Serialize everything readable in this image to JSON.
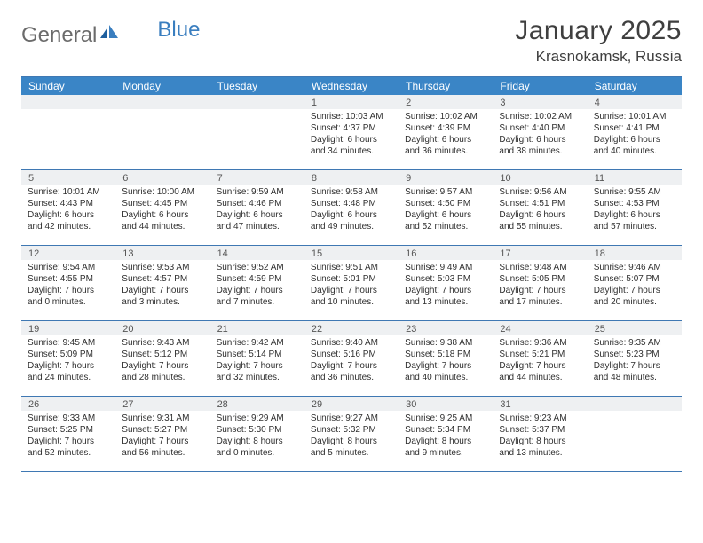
{
  "brand": {
    "part1": "General",
    "part2": "Blue"
  },
  "title": "January 2025",
  "location": "Krasnokamsk, Russia",
  "colors": {
    "header_bg": "#3a85c6",
    "border": "#3f78b3",
    "daybar": "#eef0f2",
    "logo_gray": "#6b6b6b",
    "logo_blue": "#3a7ebf"
  },
  "dayNames": [
    "Sunday",
    "Monday",
    "Tuesday",
    "Wednesday",
    "Thursday",
    "Friday",
    "Saturday"
  ],
  "weeks": [
    [
      {
        "n": "",
        "sr": "",
        "ss": "",
        "dl1": "",
        "dl2": ""
      },
      {
        "n": "",
        "sr": "",
        "ss": "",
        "dl1": "",
        "dl2": ""
      },
      {
        "n": "",
        "sr": "",
        "ss": "",
        "dl1": "",
        "dl2": ""
      },
      {
        "n": "1",
        "sr": "Sunrise: 10:03 AM",
        "ss": "Sunset: 4:37 PM",
        "dl1": "Daylight: 6 hours",
        "dl2": "and 34 minutes."
      },
      {
        "n": "2",
        "sr": "Sunrise: 10:02 AM",
        "ss": "Sunset: 4:39 PM",
        "dl1": "Daylight: 6 hours",
        "dl2": "and 36 minutes."
      },
      {
        "n": "3",
        "sr": "Sunrise: 10:02 AM",
        "ss": "Sunset: 4:40 PM",
        "dl1": "Daylight: 6 hours",
        "dl2": "and 38 minutes."
      },
      {
        "n": "4",
        "sr": "Sunrise: 10:01 AM",
        "ss": "Sunset: 4:41 PM",
        "dl1": "Daylight: 6 hours",
        "dl2": "and 40 minutes."
      }
    ],
    [
      {
        "n": "5",
        "sr": "Sunrise: 10:01 AM",
        "ss": "Sunset: 4:43 PM",
        "dl1": "Daylight: 6 hours",
        "dl2": "and 42 minutes."
      },
      {
        "n": "6",
        "sr": "Sunrise: 10:00 AM",
        "ss": "Sunset: 4:45 PM",
        "dl1": "Daylight: 6 hours",
        "dl2": "and 44 minutes."
      },
      {
        "n": "7",
        "sr": "Sunrise: 9:59 AM",
        "ss": "Sunset: 4:46 PM",
        "dl1": "Daylight: 6 hours",
        "dl2": "and 47 minutes."
      },
      {
        "n": "8",
        "sr": "Sunrise: 9:58 AM",
        "ss": "Sunset: 4:48 PM",
        "dl1": "Daylight: 6 hours",
        "dl2": "and 49 minutes."
      },
      {
        "n": "9",
        "sr": "Sunrise: 9:57 AM",
        "ss": "Sunset: 4:50 PM",
        "dl1": "Daylight: 6 hours",
        "dl2": "and 52 minutes."
      },
      {
        "n": "10",
        "sr": "Sunrise: 9:56 AM",
        "ss": "Sunset: 4:51 PM",
        "dl1": "Daylight: 6 hours",
        "dl2": "and 55 minutes."
      },
      {
        "n": "11",
        "sr": "Sunrise: 9:55 AM",
        "ss": "Sunset: 4:53 PM",
        "dl1": "Daylight: 6 hours",
        "dl2": "and 57 minutes."
      }
    ],
    [
      {
        "n": "12",
        "sr": "Sunrise: 9:54 AM",
        "ss": "Sunset: 4:55 PM",
        "dl1": "Daylight: 7 hours",
        "dl2": "and 0 minutes."
      },
      {
        "n": "13",
        "sr": "Sunrise: 9:53 AM",
        "ss": "Sunset: 4:57 PM",
        "dl1": "Daylight: 7 hours",
        "dl2": "and 3 minutes."
      },
      {
        "n": "14",
        "sr": "Sunrise: 9:52 AM",
        "ss": "Sunset: 4:59 PM",
        "dl1": "Daylight: 7 hours",
        "dl2": "and 7 minutes."
      },
      {
        "n": "15",
        "sr": "Sunrise: 9:51 AM",
        "ss": "Sunset: 5:01 PM",
        "dl1": "Daylight: 7 hours",
        "dl2": "and 10 minutes."
      },
      {
        "n": "16",
        "sr": "Sunrise: 9:49 AM",
        "ss": "Sunset: 5:03 PM",
        "dl1": "Daylight: 7 hours",
        "dl2": "and 13 minutes."
      },
      {
        "n": "17",
        "sr": "Sunrise: 9:48 AM",
        "ss": "Sunset: 5:05 PM",
        "dl1": "Daylight: 7 hours",
        "dl2": "and 17 minutes."
      },
      {
        "n": "18",
        "sr": "Sunrise: 9:46 AM",
        "ss": "Sunset: 5:07 PM",
        "dl1": "Daylight: 7 hours",
        "dl2": "and 20 minutes."
      }
    ],
    [
      {
        "n": "19",
        "sr": "Sunrise: 9:45 AM",
        "ss": "Sunset: 5:09 PM",
        "dl1": "Daylight: 7 hours",
        "dl2": "and 24 minutes."
      },
      {
        "n": "20",
        "sr": "Sunrise: 9:43 AM",
        "ss": "Sunset: 5:12 PM",
        "dl1": "Daylight: 7 hours",
        "dl2": "and 28 minutes."
      },
      {
        "n": "21",
        "sr": "Sunrise: 9:42 AM",
        "ss": "Sunset: 5:14 PM",
        "dl1": "Daylight: 7 hours",
        "dl2": "and 32 minutes."
      },
      {
        "n": "22",
        "sr": "Sunrise: 9:40 AM",
        "ss": "Sunset: 5:16 PM",
        "dl1": "Daylight: 7 hours",
        "dl2": "and 36 minutes."
      },
      {
        "n": "23",
        "sr": "Sunrise: 9:38 AM",
        "ss": "Sunset: 5:18 PM",
        "dl1": "Daylight: 7 hours",
        "dl2": "and 40 minutes."
      },
      {
        "n": "24",
        "sr": "Sunrise: 9:36 AM",
        "ss": "Sunset: 5:21 PM",
        "dl1": "Daylight: 7 hours",
        "dl2": "and 44 minutes."
      },
      {
        "n": "25",
        "sr": "Sunrise: 9:35 AM",
        "ss": "Sunset: 5:23 PM",
        "dl1": "Daylight: 7 hours",
        "dl2": "and 48 minutes."
      }
    ],
    [
      {
        "n": "26",
        "sr": "Sunrise: 9:33 AM",
        "ss": "Sunset: 5:25 PM",
        "dl1": "Daylight: 7 hours",
        "dl2": "and 52 minutes."
      },
      {
        "n": "27",
        "sr": "Sunrise: 9:31 AM",
        "ss": "Sunset: 5:27 PM",
        "dl1": "Daylight: 7 hours",
        "dl2": "and 56 minutes."
      },
      {
        "n": "28",
        "sr": "Sunrise: 9:29 AM",
        "ss": "Sunset: 5:30 PM",
        "dl1": "Daylight: 8 hours",
        "dl2": "and 0 minutes."
      },
      {
        "n": "29",
        "sr": "Sunrise: 9:27 AM",
        "ss": "Sunset: 5:32 PM",
        "dl1": "Daylight: 8 hours",
        "dl2": "and 5 minutes."
      },
      {
        "n": "30",
        "sr": "Sunrise: 9:25 AM",
        "ss": "Sunset: 5:34 PM",
        "dl1": "Daylight: 8 hours",
        "dl2": "and 9 minutes."
      },
      {
        "n": "31",
        "sr": "Sunrise: 9:23 AM",
        "ss": "Sunset: 5:37 PM",
        "dl1": "Daylight: 8 hours",
        "dl2": "and 13 minutes."
      },
      {
        "n": "",
        "sr": "",
        "ss": "",
        "dl1": "",
        "dl2": ""
      }
    ]
  ]
}
